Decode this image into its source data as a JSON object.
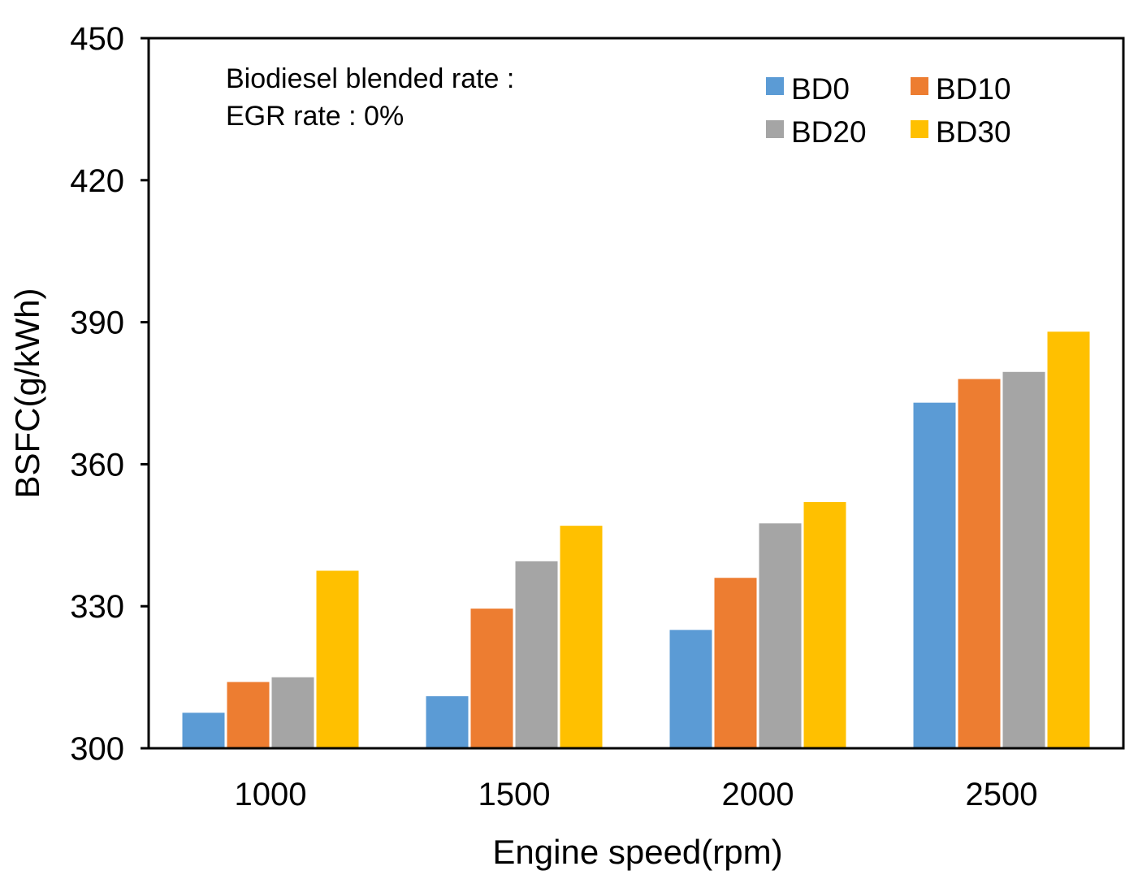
{
  "chart_data": {
    "type": "bar",
    "title": "",
    "xlabel": "Engine speed(rpm)",
    "ylabel": "BSFC(g/kWh)",
    "ylim": [
      300,
      450
    ],
    "yticks": [
      300,
      330,
      360,
      390,
      420,
      450
    ],
    "categories": [
      "1000",
      "1500",
      "2000",
      "2500"
    ],
    "series": [
      {
        "name": "BD0",
        "color": "#5B9BD5",
        "values": [
          307.5,
          311,
          325,
          373
        ]
      },
      {
        "name": "BD10",
        "color": "#ED7D31",
        "values": [
          314,
          329.5,
          336,
          378
        ]
      },
      {
        "name": "BD20",
        "color": "#A5A5A5",
        "values": [
          315,
          339.5,
          347.5,
          379.5
        ]
      },
      {
        "name": "BD30",
        "color": "#FFC000",
        "values": [
          337.5,
          347,
          352,
          388
        ]
      }
    ],
    "annotations": [
      "Biodiesel blended rate :",
      "EGR rate : 0%"
    ],
    "legend_position": "top-right",
    "grid": false
  }
}
